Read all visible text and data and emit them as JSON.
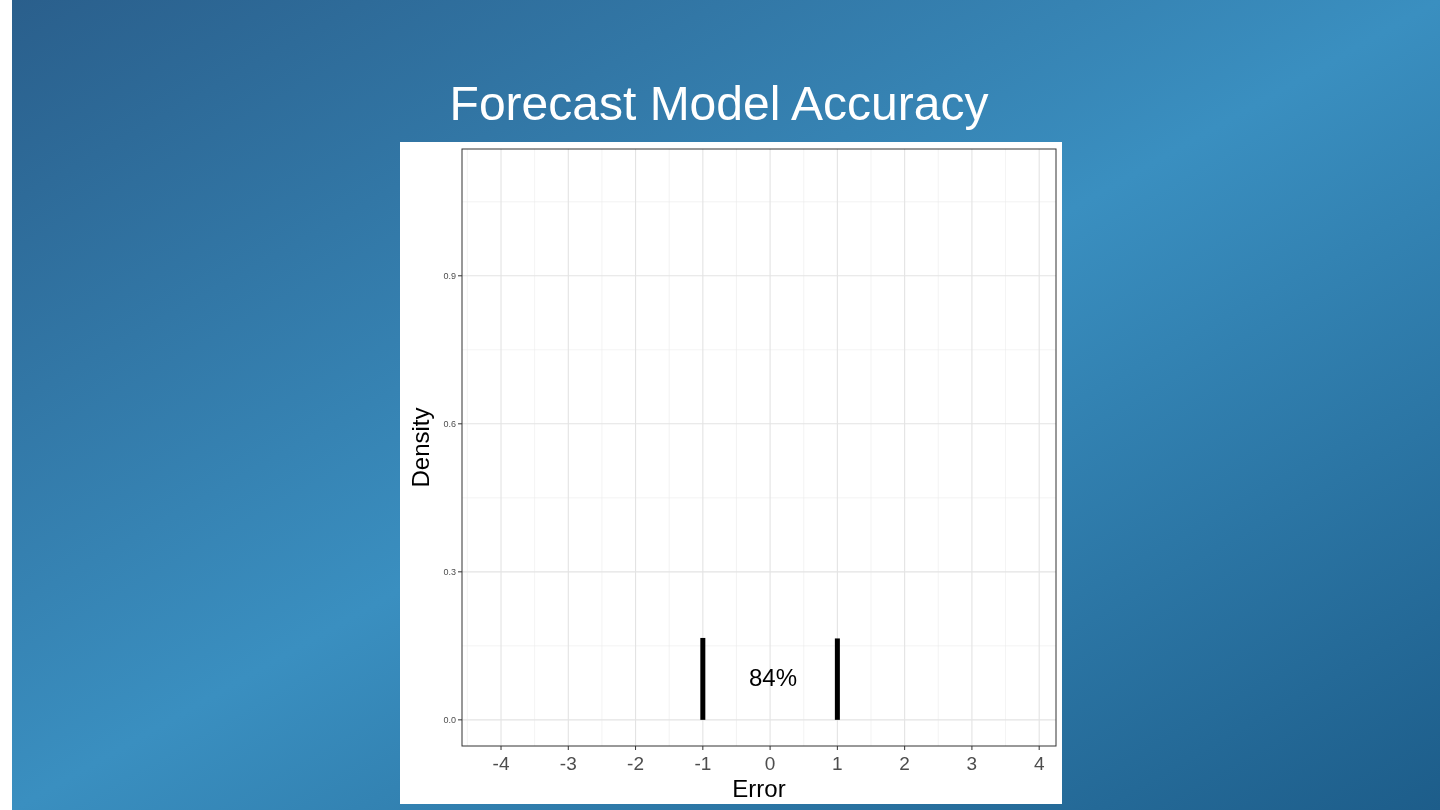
{
  "chart_data": {
    "type": "bar",
    "title": "Forecast Model Accuracy",
    "xlabel": "Error",
    "ylabel": "Density",
    "xlim": [
      -4.58,
      4.25
    ],
    "ylim": [
      -0.053,
      1.157
    ],
    "xticks": [
      -4,
      -3,
      -2,
      -1,
      0,
      1,
      2,
      3,
      4
    ],
    "yticks": [
      {
        "value": 0,
        "label": "0.0"
      },
      0.3,
      0.6,
      0.9
    ],
    "x": [
      -1,
      1
    ],
    "values": [
      0.166,
      0.165
    ],
    "color": "#000000",
    "annotations": [
      "84%"
    ],
    "grid": true
  }
}
